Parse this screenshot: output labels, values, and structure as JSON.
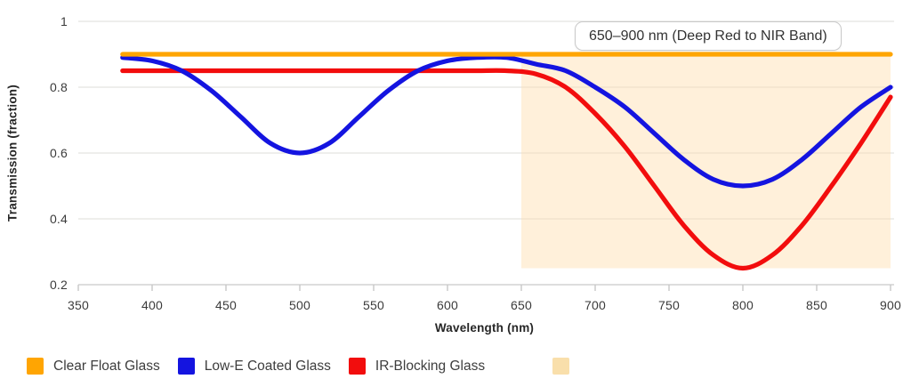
{
  "chart_data": {
    "type": "line",
    "title": "",
    "xlabel": "Wavelength (nm)",
    "ylabel": "Transmission (fraction)",
    "xlim": [
      350,
      900
    ],
    "ylim": [
      0.2,
      1.0
    ],
    "x_ticks": [
      350,
      400,
      450,
      500,
      550,
      600,
      650,
      700,
      750,
      800,
      850,
      900
    ],
    "y_ticks": [
      0.2,
      0.4,
      0.6,
      0.8,
      1
    ],
    "y_tick_labels": [
      "0.2",
      "0.4",
      "0.6",
      "0.8",
      "1"
    ],
    "grid": "horizontal",
    "legend_position": "bottom",
    "x": [
      380,
      400,
      420,
      440,
      460,
      480,
      500,
      520,
      540,
      560,
      580,
      600,
      620,
      640,
      660,
      680,
      700,
      720,
      740,
      760,
      780,
      800,
      820,
      840,
      860,
      880,
      900
    ],
    "series": [
      {
        "name": "Clear Float Glass",
        "color": "#FFA502",
        "values": [
          0.9,
          0.9,
          0.9,
          0.9,
          0.9,
          0.9,
          0.9,
          0.9,
          0.9,
          0.9,
          0.9,
          0.9,
          0.9,
          0.9,
          0.9,
          0.9,
          0.9,
          0.9,
          0.9,
          0.9,
          0.9,
          0.9,
          0.9,
          0.9,
          0.9,
          0.9,
          0.9
        ]
      },
      {
        "name": "Low-E Coated Glass",
        "color": "#1414E0",
        "values": [
          0.89,
          0.88,
          0.85,
          0.79,
          0.71,
          0.63,
          0.6,
          0.63,
          0.71,
          0.79,
          0.85,
          0.88,
          0.89,
          0.89,
          0.87,
          0.85,
          0.8,
          0.74,
          0.66,
          0.58,
          0.52,
          0.5,
          0.52,
          0.58,
          0.66,
          0.74,
          0.8
        ]
      },
      {
        "name": "IR-Blocking Glass",
        "color": "#F20D0D",
        "values": [
          0.85,
          0.85,
          0.85,
          0.85,
          0.85,
          0.85,
          0.85,
          0.85,
          0.85,
          0.85,
          0.85,
          0.85,
          0.85,
          0.85,
          0.84,
          0.8,
          0.72,
          0.62,
          0.5,
          0.38,
          0.29,
          0.25,
          0.29,
          0.38,
          0.5,
          0.63,
          0.77
        ]
      }
    ],
    "band": {
      "x_from": 650,
      "x_to": 900,
      "y_from": 0.25,
      "y_to": 0.9,
      "color": "#FFDEAD",
      "opacity": 0.45,
      "legend_label": ""
    },
    "annotation": {
      "text": "650–900 nm (Deep Red to NIR Band)"
    },
    "legend": [
      {
        "label": "Clear Float Glass",
        "color": "#FFA502"
      },
      {
        "label": "Low-E Coated Glass",
        "color": "#1414E0"
      },
      {
        "label": "IR-Blocking Glass",
        "color": "#F20D0D"
      },
      {
        "label": "",
        "color": "#F9DFAB"
      }
    ]
  }
}
